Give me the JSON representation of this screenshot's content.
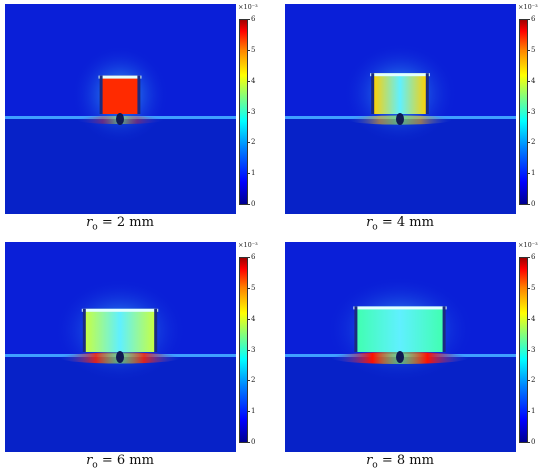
{
  "colorbar": {
    "exponent": "×10⁻³",
    "ticks": [
      "6",
      "5",
      "4",
      "3",
      "2",
      "1",
      "0"
    ],
    "min": 0,
    "max": 6
  },
  "panels": [
    {
      "var": "r",
      "sub": "o",
      "eq": "= 2 mm",
      "ro_mm": 2,
      "magnet_color": "#ff2a00",
      "band_color": "#ff2000",
      "band_strength": 0.35
    },
    {
      "var": "r",
      "sub": "o",
      "eq": "= 4 mm",
      "ro_mm": 4,
      "magnet_color": "#ffd000",
      "band_color": "#ffb000",
      "band_strength": 0.55
    },
    {
      "var": "r",
      "sub": "o",
      "eq": "= 6 mm",
      "ro_mm": 6,
      "magnet_color": "#c8ff40",
      "band_color": "#ff2000",
      "band_strength": 0.85
    },
    {
      "var": "r",
      "sub": "o",
      "eq": "= 8 mm",
      "ro_mm": 8,
      "magnet_color": "#40ffb0",
      "band_color": "#ff1000",
      "band_strength": 1.0
    }
  ],
  "colors": {
    "background": "#0a1fd8",
    "lower": "#0722c8",
    "surface": "#3fa0ff"
  }
}
